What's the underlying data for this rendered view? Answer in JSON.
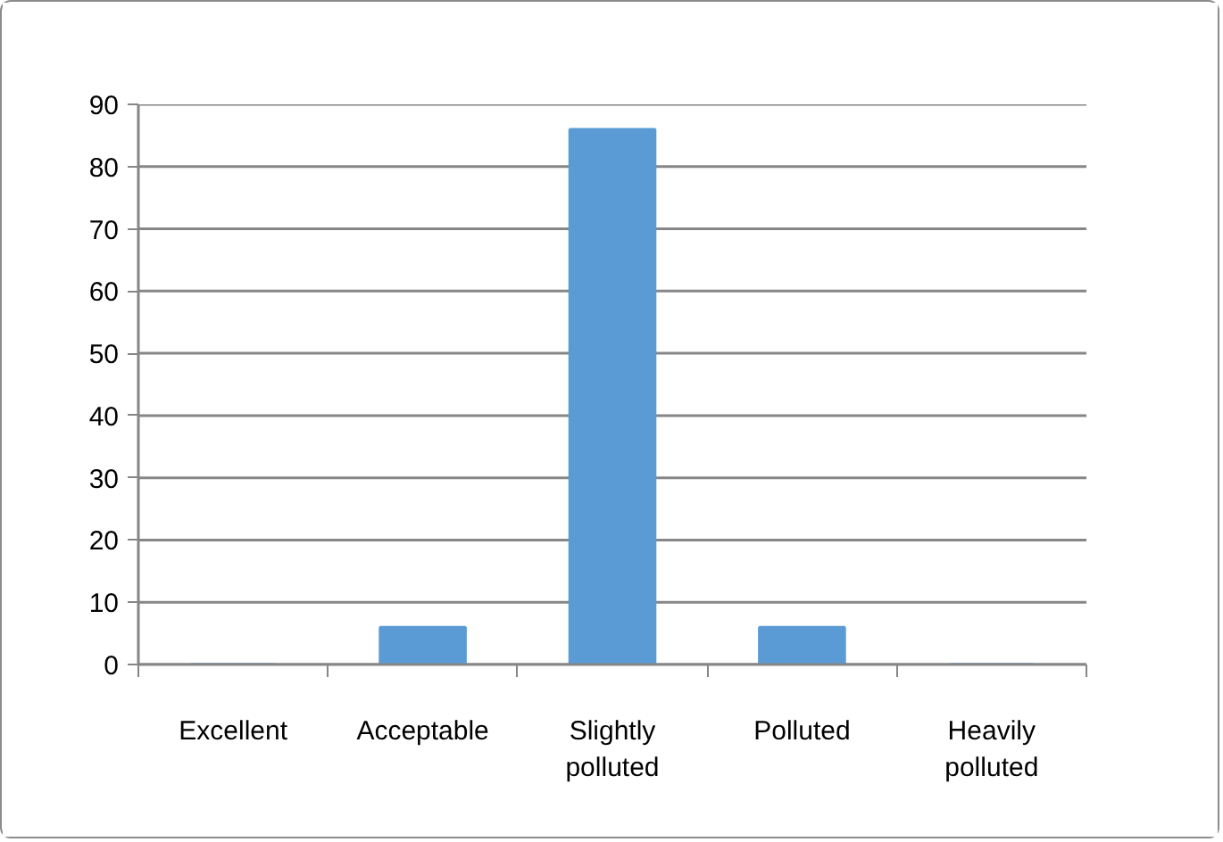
{
  "chart_data": {
    "type": "bar",
    "categories": [
      "Excellent",
      "Acceptable",
      "Slightly polluted",
      "Polluted",
      "Heavily polluted"
    ],
    "values": [
      0,
      6,
      86,
      6,
      0
    ],
    "color": "#5b9bd5",
    "ylim": [
      0,
      90
    ],
    "yticks": [
      0,
      10,
      20,
      30,
      40,
      50,
      60,
      70,
      80,
      90
    ],
    "grid": "y"
  }
}
